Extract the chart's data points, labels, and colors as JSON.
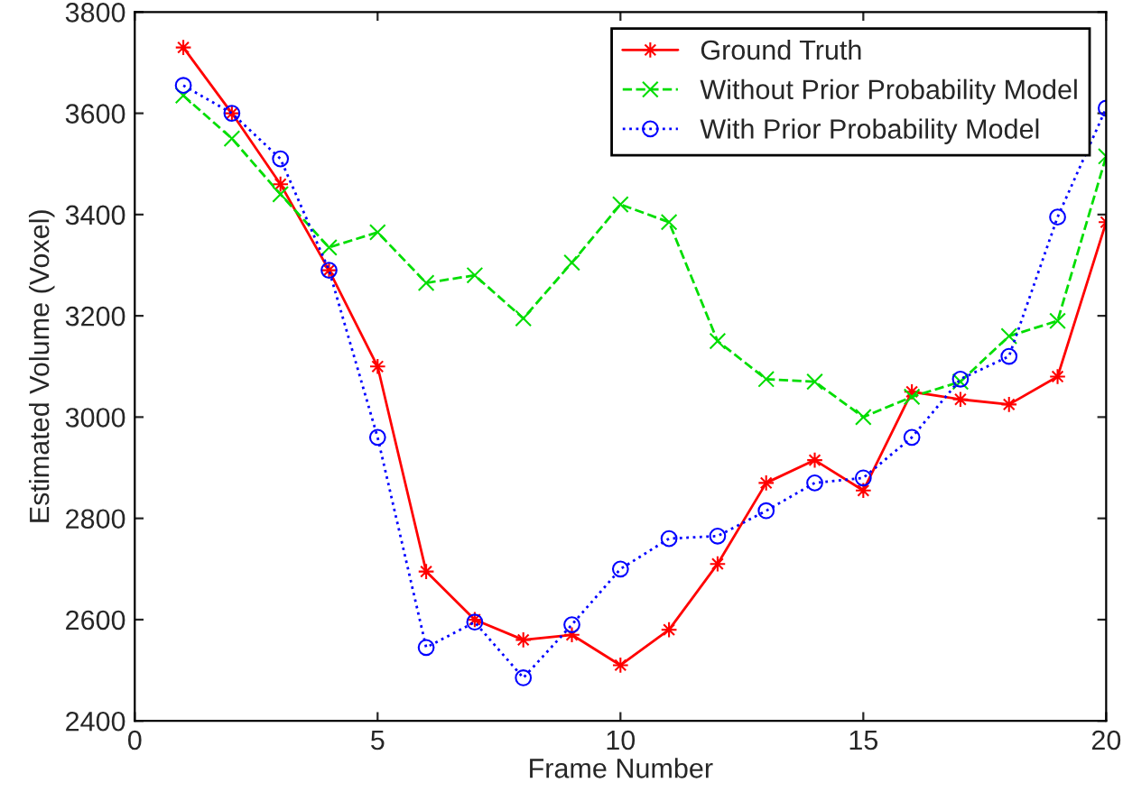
{
  "chart_data": {
    "type": "line",
    "xlabel": "Frame Number",
    "ylabel": "Estimated Volume (Voxel)",
    "x": [
      1,
      2,
      3,
      4,
      5,
      6,
      7,
      8,
      9,
      10,
      11,
      12,
      13,
      14,
      15,
      16,
      17,
      18,
      19,
      20
    ],
    "series": [
      {
        "name": "Ground Truth",
        "color": "#ff0000",
        "marker": "star",
        "line_style": "solid",
        "values": [
          3730,
          3600,
          3460,
          3290,
          3100,
          2695,
          2600,
          2560,
          2570,
          2510,
          2580,
          2710,
          2870,
          2915,
          2855,
          3050,
          3035,
          3025,
          3080,
          3385
        ]
      },
      {
        "name": "Without Prior Probability Model",
        "color": "#00dd00",
        "marker": "cross",
        "line_style": "dashed",
        "values": [
          3635,
          3550,
          3440,
          3335,
          3365,
          3265,
          3280,
          3195,
          3305,
          3420,
          3385,
          3150,
          3075,
          3070,
          3000,
          3040,
          3070,
          3160,
          3190,
          3515
        ]
      },
      {
        "name": "With Prior Probability Model",
        "color": "#0000ff",
        "marker": "circle",
        "line_style": "dotted",
        "values": [
          3655,
          3600,
          3510,
          3290,
          2960,
          2545,
          2595,
          2485,
          2590,
          2700,
          2760,
          2765,
          2815,
          2870,
          2880,
          2960,
          3075,
          3120,
          3395,
          3610
        ]
      }
    ],
    "xlim": [
      0,
      20
    ],
    "xticks": [
      0,
      5,
      10,
      15,
      20
    ],
    "ylim": [
      2400,
      3800
    ],
    "yticks": [
      2400,
      2600,
      2800,
      3000,
      3200,
      3400,
      3600,
      3800
    ],
    "grid": false,
    "legend": "top right"
  }
}
